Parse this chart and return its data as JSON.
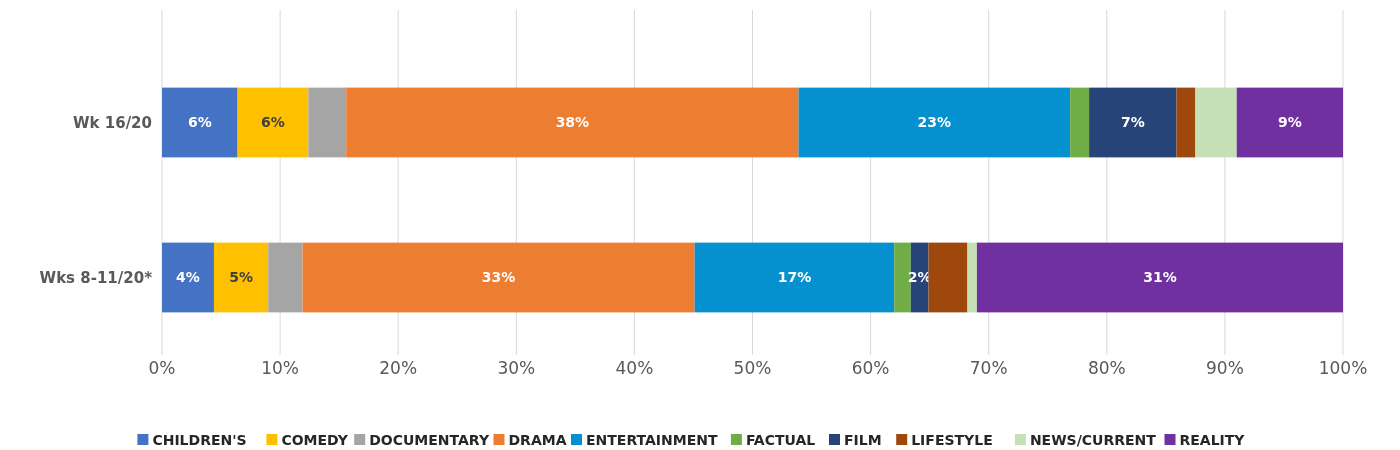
{
  "chart_data": {
    "type": "bar",
    "orientation": "horizontal",
    "stacked": true,
    "categories": [
      "Wk 16/20",
      "Wks 8-11/20*"
    ],
    "xlim": [
      0,
      100
    ],
    "xticks": [
      {
        "value": 0,
        "label": "0%"
      },
      {
        "value": 10,
        "label": "10%"
      },
      {
        "value": 20,
        "label": "20%"
      },
      {
        "value": 30,
        "label": "30%"
      },
      {
        "value": 40,
        "label": "40%"
      },
      {
        "value": 50,
        "label": "50%"
      },
      {
        "value": 60,
        "label": "60%"
      },
      {
        "value": 70,
        "label": "70%"
      },
      {
        "value": 80,
        "label": "80%"
      },
      {
        "value": 90,
        "label": "90%"
      },
      {
        "value": 100,
        "label": "100%"
      }
    ],
    "grid": "x",
    "legend": "bottom",
    "series": [
      {
        "name": "CHILDREN'S",
        "color": "#4472c4",
        "values": [
          6.4,
          4.4
        ],
        "value_labels": [
          "6%",
          "4%"
        ]
      },
      {
        "name": "COMEDY",
        "color": "#ffc000",
        "values": [
          6.0,
          4.6
        ],
        "value_labels": [
          "6%",
          "5%"
        ]
      },
      {
        "name": "DOCUMENTARY",
        "color": "#a5a5a5",
        "values": [
          3.2,
          2.9
        ],
        "value_labels": [
          null,
          null
        ]
      },
      {
        "name": "DRAMA",
        "color": "#ed7d31",
        "values": [
          38.3,
          33.2
        ],
        "value_labels": [
          "38%",
          "33%"
        ]
      },
      {
        "name": "ENTERTAINMENT",
        "color": "#0590cf",
        "values": [
          23.0,
          16.9
        ],
        "value_labels": [
          "23%",
          "17%"
        ]
      },
      {
        "name": "FACTUAL",
        "color": "#70ad47",
        "values": [
          1.6,
          1.4
        ],
        "value_labels": [
          null,
          null
        ]
      },
      {
        "name": "FILM",
        "color": "#264478",
        "values": [
          7.4,
          1.5
        ],
        "value_labels": [
          "7%",
          "2%"
        ]
      },
      {
        "name": "LIFESTYLE",
        "color": "#9e480e",
        "values": [
          1.6,
          3.3
        ],
        "value_labels": [
          null,
          null
        ]
      },
      {
        "name": "NEWS/CURRENT",
        "color": "#c5e0b4",
        "values": [
          3.5,
          0.8
        ],
        "value_labels": [
          null,
          null
        ]
      },
      {
        "name": "REALITY",
        "color": "#7030a0",
        "values": [
          9.0,
          31.0
        ],
        "value_labels": [
          "9%",
          "31%"
        ]
      }
    ]
  }
}
